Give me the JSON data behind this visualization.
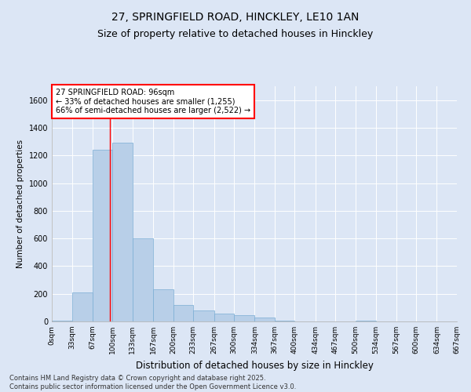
{
  "title1": "27, SPRINGFIELD ROAD, HINCKLEY, LE10 1AN",
  "title2": "Size of property relative to detached houses in Hinckley",
  "xlabel": "Distribution of detached houses by size in Hinckley",
  "ylabel": "Number of detached properties",
  "annotation_title": "27 SPRINGFIELD ROAD: 96sqm",
  "annotation_line1": "← 33% of detached houses are smaller (1,255)",
  "annotation_line2": "66% of semi-detached houses are larger (2,522) →",
  "footnote1": "Contains HM Land Registry data © Crown copyright and database right 2025.",
  "footnote2": "Contains public sector information licensed under the Open Government Licence v3.0.",
  "bar_color": "#b8cfe8",
  "bar_edge_color": "#7aadd4",
  "background_color": "#dce6f5",
  "red_line_x": 96,
  "bin_edges": [
    0,
    33,
    67,
    100,
    133,
    167,
    200,
    233,
    267,
    300,
    334,
    367,
    400,
    434,
    467,
    500,
    534,
    567,
    600,
    634,
    667
  ],
  "bar_heights": [
    5,
    210,
    1240,
    1290,
    600,
    230,
    120,
    80,
    55,
    45,
    30,
    5,
    0,
    0,
    0,
    5,
    0,
    0,
    0,
    0
  ],
  "ylim": [
    0,
    1700
  ],
  "xlim": [
    0,
    667
  ],
  "ytick_interval": 200,
  "annotation_box_color": "white",
  "annotation_box_edge_color": "red",
  "title1_fontsize": 10,
  "title2_fontsize": 9,
  "tick_label_fontsize": 6.5,
  "xlabel_fontsize": 8.5,
  "ylabel_fontsize": 7.5,
  "annotation_fontsize": 7,
  "footnote_fontsize": 6
}
